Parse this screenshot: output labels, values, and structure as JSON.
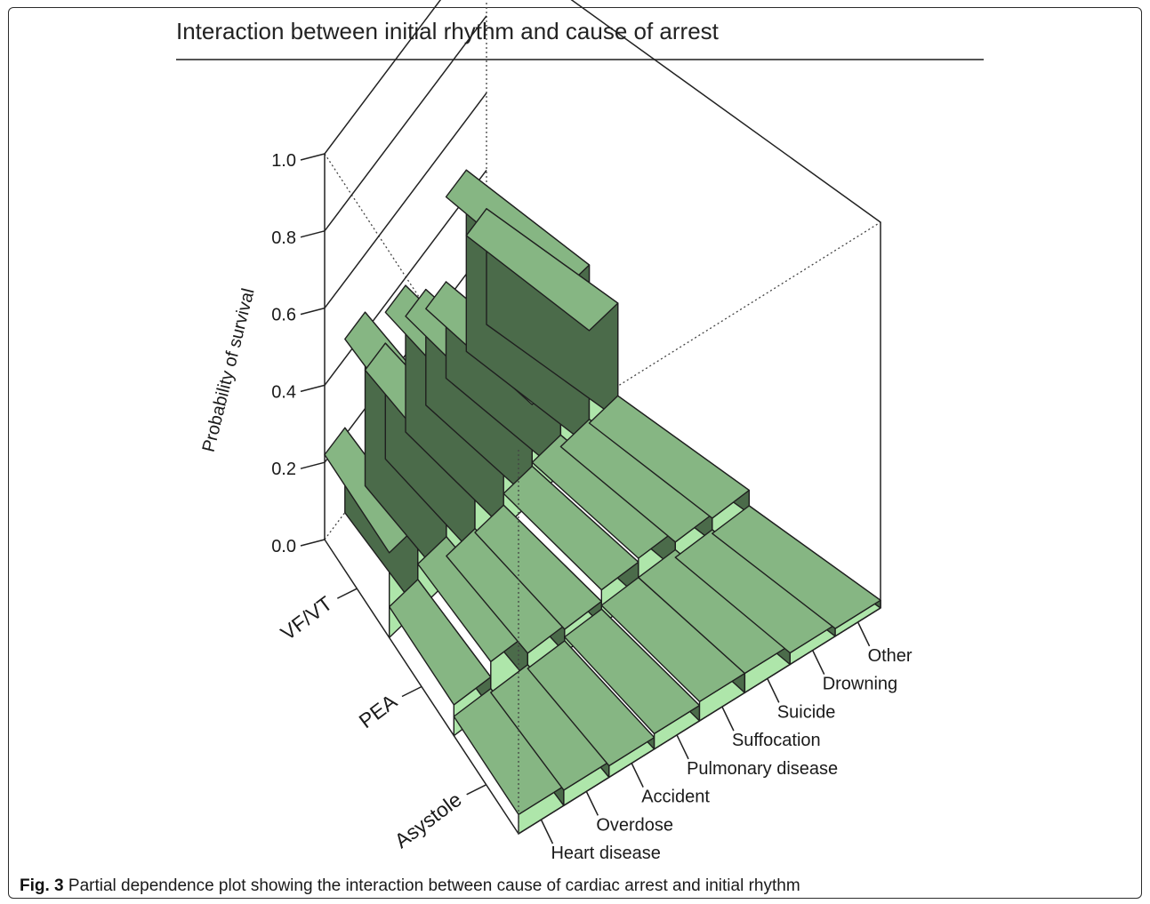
{
  "chart_data": {
    "type": "bar3d",
    "title": "Interaction between initial rhythm and cause of arrest",
    "zlabel": "Probability of survival",
    "zlim": [
      0,
      1
    ],
    "z_ticks": [
      "0.0",
      "0.2",
      "0.4",
      "0.6",
      "0.8",
      "1.0"
    ],
    "z_tick_values": [
      0,
      0.2,
      0.4,
      0.6,
      0.8,
      1.0
    ],
    "rows": [
      "Asystole",
      "PEA",
      "VF/VT"
    ],
    "columns": [
      "Heart disease",
      "Overdose",
      "Accident",
      "Pulmonary disease",
      "Suffocation",
      "Suicide",
      "Drowning",
      "Other"
    ],
    "values": [
      [
        0.05,
        0.04,
        0.03,
        0.04,
        0.05,
        0.05,
        0.03,
        0.02
      ],
      [
        0.08,
        0.12,
        0.07,
        0.06,
        0.09,
        0.1,
        0.07,
        0.06
      ],
      [
        0.22,
        0.45,
        0.3,
        0.38,
        0.3,
        0.25,
        0.47,
        0.3
      ]
    ],
    "colors": {
      "top": "#86b683",
      "side_light": "#aee6aa",
      "side_dark": "#4b6b4a",
      "edge": "#1f1f1f"
    }
  },
  "caption": {
    "lead": "Fig. 3",
    "text": " Partial dependence plot showing the interaction between cause of cardiac arrest and initial rhythm"
  }
}
